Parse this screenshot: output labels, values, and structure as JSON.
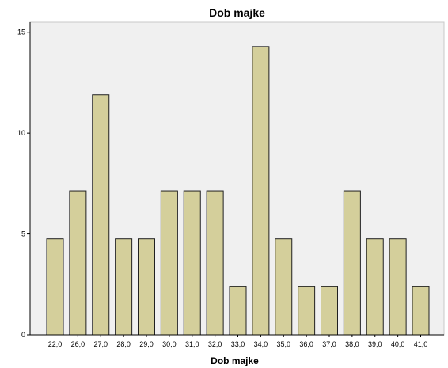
{
  "chart_data": {
    "type": "bar",
    "title": "Dob majke",
    "xlabel": "Dob majke",
    "ylabel": "",
    "categories": [
      "22,0",
      "26,0",
      "27,0",
      "28,0",
      "29,0",
      "30,0",
      "31,0",
      "32,0",
      "33,0",
      "34,0",
      "35,0",
      "36,0",
      "37,0",
      "38,0",
      "39,0",
      "40,0",
      "41,0"
    ],
    "values": [
      4.76,
      7.14,
      11.9,
      4.76,
      4.76,
      7.14,
      7.14,
      7.14,
      2.38,
      14.29,
      4.76,
      2.38,
      2.38,
      7.14,
      4.76,
      4.76,
      2.38
    ],
    "ylim": [
      0,
      15.5
    ],
    "y_ticks": [
      0,
      5,
      10,
      15
    ],
    "y_tick_labels": [
      "0",
      "5",
      "10",
      "15"
    ],
    "grid": false,
    "legend": "none",
    "colors": {
      "bar_fill": "#d4cf9b",
      "bar_stroke": "#202020",
      "plot_background": "#f0f0f0",
      "axis": "#000000"
    }
  }
}
